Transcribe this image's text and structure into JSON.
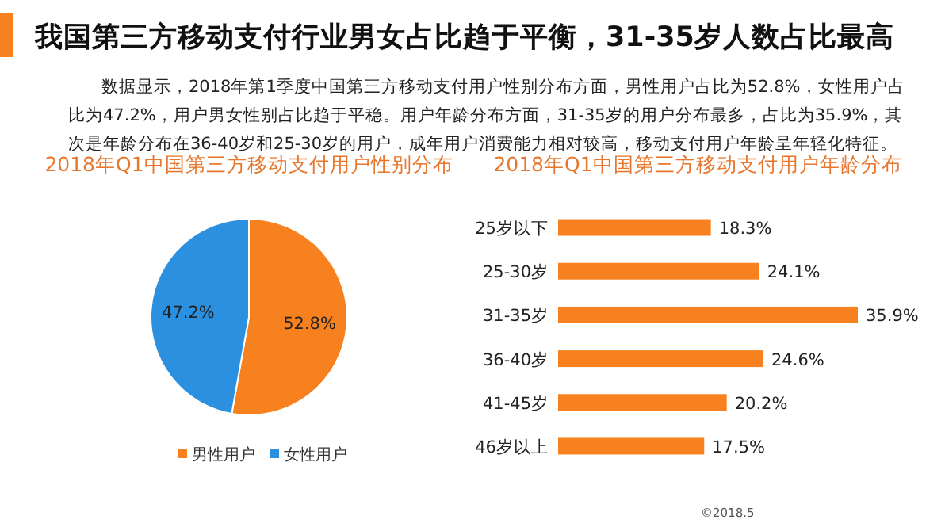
{
  "chart_data": [
    {
      "type": "other",
      "title": "我国第三方移动支付行业男女占比趋于平衡，31-35岁人数占比最高",
      "subtitle": "数据显示，2018年第1季度中国第三方移动支付用户性别分布方面，男性用户占比为52.8%，女性用户占比为47.2%，用户男女性别占比趋于平稳。用户年龄分布方面，31-35岁的用户分布最多，占比为35.9%，其次是年龄分布在36-40岁和25-30岁的用户，成年用户消费能力相对较高，移动支付用户年龄呈年轻化特征。"
    },
    {
      "type": "pie",
      "title": "2018年Q1中国第三方移动支付用户性别分布",
      "categories": [
        "男性用户",
        "女性用户"
      ],
      "values": [
        52.8,
        47.2
      ],
      "colors": [
        "#f7801f",
        "#2b90e0"
      ],
      "value_labels": [
        "52.8%",
        "47.2%"
      ],
      "legend": "bottom"
    },
    {
      "type": "bar",
      "orientation": "horizontal",
      "title": "2018年Q1中国第三方移动支付用户年龄分布",
      "categories": [
        "25岁以下",
        "25-30岁",
        "31-35岁",
        "36-40岁",
        "41-45岁",
        "46岁以上"
      ],
      "values": [
        18.3,
        24.1,
        35.9,
        24.6,
        20.2,
        17.5
      ],
      "color": "#f7801f",
      "value_labels": [
        "18.3%",
        "24.1%",
        "35.9%",
        "24.6%",
        "20.2%",
        "17.5%"
      ],
      "annotations": [
        "©2018.5"
      ]
    }
  ]
}
